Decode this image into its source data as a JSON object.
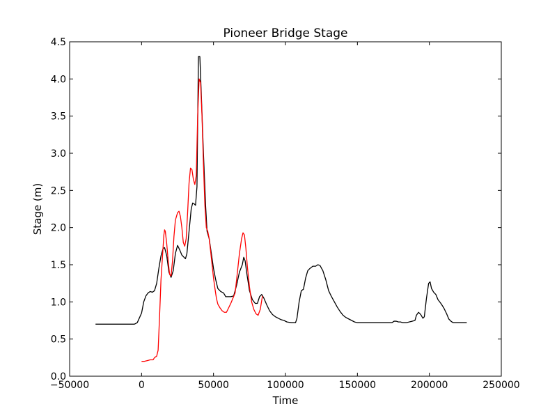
{
  "chart_data": {
    "type": "line",
    "title": "Pioneer Bridge Stage",
    "xlabel": "Time",
    "ylabel": "Stage (m)",
    "xlim": [
      -50000,
      250000
    ],
    "ylim": [
      0.0,
      4.5
    ],
    "xticks": [
      -50000,
      0,
      50000,
      100000,
      150000,
      200000,
      250000
    ],
    "xtick_labels": [
      "−50000",
      "0",
      "50000",
      "100000",
      "150000",
      "200000",
      "250000"
    ],
    "yticks": [
      0.0,
      0.5,
      1.0,
      1.5,
      2.0,
      2.5,
      3.0,
      3.5,
      4.0,
      4.5
    ],
    "ytick_labels": [
      "0.0",
      "0.5",
      "1.0",
      "1.5",
      "2.0",
      "2.5",
      "3.0",
      "3.5",
      "4.0",
      "4.5"
    ],
    "grid": false,
    "series": [
      {
        "color": "#000000",
        "points": [
          [
            -32000,
            0.7
          ],
          [
            -5000,
            0.7
          ],
          [
            -3000,
            0.72
          ],
          [
            0,
            0.85
          ],
          [
            1500,
            1.0
          ],
          [
            3000,
            1.08
          ],
          [
            4500,
            1.12
          ],
          [
            6000,
            1.14
          ],
          [
            7500,
            1.13
          ],
          [
            9000,
            1.15
          ],
          [
            10500,
            1.25
          ],
          [
            12000,
            1.45
          ],
          [
            13500,
            1.62
          ],
          [
            15000,
            1.72
          ],
          [
            16000,
            1.73
          ],
          [
            17500,
            1.62
          ],
          [
            19000,
            1.4
          ],
          [
            20500,
            1.33
          ],
          [
            22000,
            1.42
          ],
          [
            23500,
            1.65
          ],
          [
            25000,
            1.76
          ],
          [
            26500,
            1.7
          ],
          [
            28000,
            1.63
          ],
          [
            29500,
            1.6
          ],
          [
            30500,
            1.58
          ],
          [
            31500,
            1.65
          ],
          [
            33000,
            1.95
          ],
          [
            34500,
            2.25
          ],
          [
            35500,
            2.33
          ],
          [
            36500,
            2.32
          ],
          [
            37500,
            2.3
          ],
          [
            38500,
            2.55
          ],
          [
            39500,
            4.3
          ],
          [
            40500,
            4.3
          ],
          [
            41500,
            3.8
          ],
          [
            43000,
            3.0
          ],
          [
            44500,
            2.3
          ],
          [
            45500,
            1.95
          ],
          [
            47000,
            1.85
          ],
          [
            48500,
            1.65
          ],
          [
            50000,
            1.45
          ],
          [
            51500,
            1.3
          ],
          [
            53000,
            1.18
          ],
          [
            55000,
            1.14
          ],
          [
            57000,
            1.12
          ],
          [
            58500,
            1.07
          ],
          [
            60000,
            1.07
          ],
          [
            62000,
            1.07
          ],
          [
            64000,
            1.08
          ],
          [
            66000,
            1.22
          ],
          [
            68000,
            1.4
          ],
          [
            70000,
            1.5
          ],
          [
            71000,
            1.6
          ],
          [
            72000,
            1.55
          ],
          [
            73000,
            1.4
          ],
          [
            75000,
            1.15
          ],
          [
            77000,
            1.03
          ],
          [
            79000,
            0.98
          ],
          [
            80500,
            0.98
          ],
          [
            82000,
            1.07
          ],
          [
            83500,
            1.1
          ],
          [
            85000,
            1.05
          ],
          [
            87000,
            0.96
          ],
          [
            89000,
            0.88
          ],
          [
            91000,
            0.83
          ],
          [
            93000,
            0.8
          ],
          [
            95000,
            0.78
          ],
          [
            97000,
            0.76
          ],
          [
            99000,
            0.75
          ],
          [
            101000,
            0.73
          ],
          [
            104000,
            0.72
          ],
          [
            107000,
            0.72
          ],
          [
            108000,
            0.78
          ],
          [
            109500,
            1.0
          ],
          [
            111000,
            1.15
          ],
          [
            112500,
            1.17
          ],
          [
            114000,
            1.32
          ],
          [
            115500,
            1.42
          ],
          [
            117000,
            1.45
          ],
          [
            119000,
            1.48
          ],
          [
            121000,
            1.48
          ],
          [
            122500,
            1.5
          ],
          [
            124000,
            1.49
          ],
          [
            126000,
            1.42
          ],
          [
            128000,
            1.3
          ],
          [
            130000,
            1.15
          ],
          [
            132000,
            1.07
          ],
          [
            134000,
            1.0
          ],
          [
            136000,
            0.93
          ],
          [
            138000,
            0.87
          ],
          [
            140000,
            0.82
          ],
          [
            142000,
            0.79
          ],
          [
            144000,
            0.77
          ],
          [
            146000,
            0.75
          ],
          [
            148000,
            0.73
          ],
          [
            150000,
            0.72
          ],
          [
            155000,
            0.72
          ],
          [
            160000,
            0.72
          ],
          [
            165000,
            0.72
          ],
          [
            170000,
            0.72
          ],
          [
            174000,
            0.72
          ],
          [
            175500,
            0.74
          ],
          [
            177000,
            0.74
          ],
          [
            178500,
            0.73
          ],
          [
            180000,
            0.73
          ],
          [
            181500,
            0.72
          ],
          [
            184000,
            0.72
          ],
          [
            186000,
            0.73
          ],
          [
            188000,
            0.74
          ],
          [
            190000,
            0.75
          ],
          [
            191000,
            0.82
          ],
          [
            192500,
            0.86
          ],
          [
            194000,
            0.83
          ],
          [
            195500,
            0.78
          ],
          [
            196500,
            0.8
          ],
          [
            198000,
            1.05
          ],
          [
            199500,
            1.25
          ],
          [
            200500,
            1.27
          ],
          [
            201500,
            1.18
          ],
          [
            203000,
            1.13
          ],
          [
            204500,
            1.1
          ],
          [
            206000,
            1.03
          ],
          [
            208000,
            0.98
          ],
          [
            210000,
            0.92
          ],
          [
            212000,
            0.84
          ],
          [
            213500,
            0.77
          ],
          [
            215000,
            0.74
          ],
          [
            216500,
            0.72
          ],
          [
            220000,
            0.72
          ],
          [
            226000,
            0.72
          ]
        ]
      },
      {
        "color": "#ff0000",
        "points": [
          [
            0,
            0.2
          ],
          [
            2000,
            0.2
          ],
          [
            4000,
            0.21
          ],
          [
            6000,
            0.22
          ],
          [
            8000,
            0.22
          ],
          [
            9000,
            0.25
          ],
          [
            10500,
            0.27
          ],
          [
            11500,
            0.35
          ],
          [
            12500,
            0.8
          ],
          [
            13500,
            1.3
          ],
          [
            14500,
            1.6
          ],
          [
            15500,
            1.9
          ],
          [
            16000,
            1.97
          ],
          [
            16500,
            1.95
          ],
          [
            17500,
            1.78
          ],
          [
            18500,
            1.55
          ],
          [
            19500,
            1.37
          ],
          [
            20500,
            1.35
          ],
          [
            21500,
            1.55
          ],
          [
            22500,
            1.88
          ],
          [
            23500,
            2.1
          ],
          [
            25000,
            2.2
          ],
          [
            26000,
            2.22
          ],
          [
            27000,
            2.15
          ],
          [
            28000,
            2.0
          ],
          [
            29000,
            1.8
          ],
          [
            30000,
            1.75
          ],
          [
            31000,
            1.85
          ],
          [
            32000,
            2.2
          ],
          [
            33000,
            2.6
          ],
          [
            34000,
            2.8
          ],
          [
            35000,
            2.78
          ],
          [
            36000,
            2.65
          ],
          [
            37000,
            2.58
          ],
          [
            38000,
            2.7
          ],
          [
            39000,
            3.5
          ],
          [
            40000,
            4.0
          ],
          [
            41000,
            3.95
          ],
          [
            42000,
            3.5
          ],
          [
            43000,
            2.85
          ],
          [
            44000,
            2.3
          ],
          [
            45000,
            2.0
          ],
          [
            46000,
            1.95
          ],
          [
            47000,
            1.85
          ],
          [
            48000,
            1.68
          ],
          [
            49000,
            1.5
          ],
          [
            50000,
            1.32
          ],
          [
            51000,
            1.18
          ],
          [
            52000,
            1.05
          ],
          [
            53000,
            0.97
          ],
          [
            54500,
            0.92
          ],
          [
            56000,
            0.88
          ],
          [
            57500,
            0.86
          ],
          [
            59000,
            0.86
          ],
          [
            60500,
            0.92
          ],
          [
            62000,
            0.98
          ],
          [
            63500,
            1.05
          ],
          [
            65000,
            1.12
          ],
          [
            66500,
            1.38
          ],
          [
            68000,
            1.65
          ],
          [
            69500,
            1.85
          ],
          [
            70500,
            1.93
          ],
          [
            71500,
            1.9
          ],
          [
            72500,
            1.72
          ],
          [
            73500,
            1.48
          ],
          [
            75000,
            1.2
          ],
          [
            76500,
            1.0
          ],
          [
            78000,
            0.9
          ],
          [
            79500,
            0.84
          ],
          [
            81000,
            0.82
          ],
          [
            82500,
            0.9
          ],
          [
            84000,
            1.08
          ]
        ]
      }
    ]
  }
}
